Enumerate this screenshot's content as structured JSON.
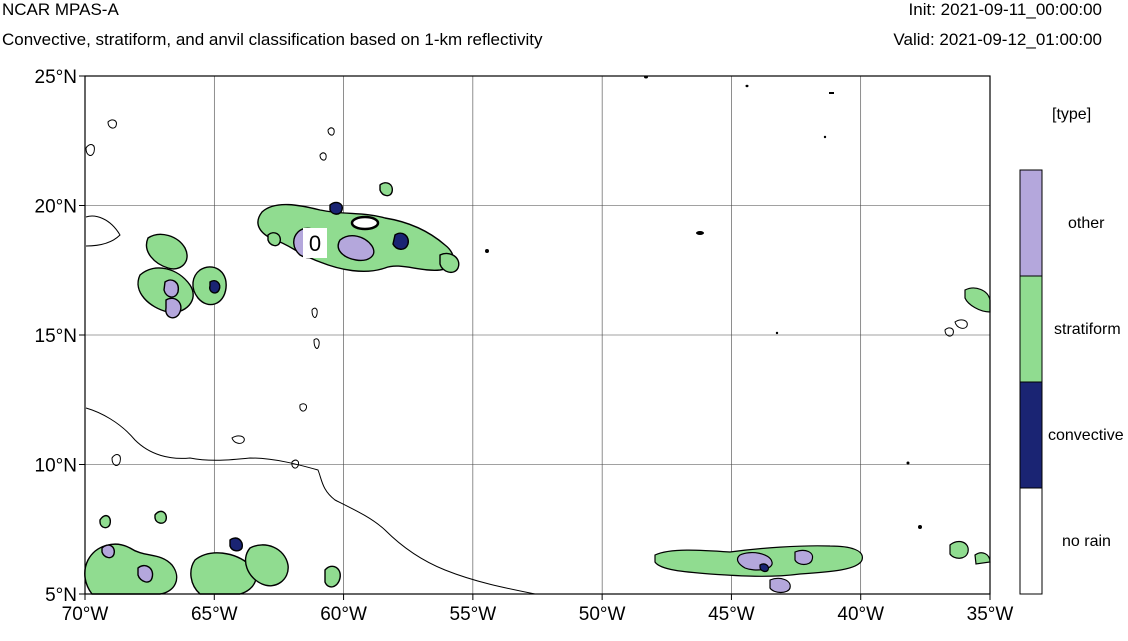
{
  "header": {
    "title": "NCAR MPAS-A",
    "subtitle": "Convective, stratiform, and anvil classification based on 1-km reflectivity",
    "init": "Init: 2021-09-11_00:00:00",
    "valid": "Valid: 2021-09-12_01:00:00"
  },
  "map": {
    "lon_range": [
      -70,
      -35
    ],
    "lat_range": [
      5,
      25
    ],
    "x_ticks": [
      {
        "value": -70,
        "label": "70°W"
      },
      {
        "value": -65,
        "label": "65°W"
      },
      {
        "value": -60,
        "label": "60°W"
      },
      {
        "value": -55,
        "label": "55°W"
      },
      {
        "value": -50,
        "label": "50°W"
      },
      {
        "value": -45,
        "label": "45°W"
      },
      {
        "value": -40,
        "label": "40°W"
      },
      {
        "value": -35,
        "label": "35°W"
      }
    ],
    "y_ticks": [
      {
        "value": 25,
        "label": "25°N"
      },
      {
        "value": 20,
        "label": "20°N"
      },
      {
        "value": 15,
        "label": "15°N"
      },
      {
        "value": 10,
        "label": "10°N"
      },
      {
        "value": 5,
        "label": "5°N"
      }
    ],
    "grid": true,
    "annotation": "0"
  },
  "legend": {
    "title": "[type]",
    "categories": [
      {
        "label": "other",
        "color": "#b4a7dc"
      },
      {
        "label": "stratiform",
        "color": "#90dc90"
      },
      {
        "label": "convective",
        "color": "#1a2473"
      },
      {
        "label": "no rain",
        "color": "#ffffff"
      }
    ]
  },
  "colors": {
    "other": "#b4a7dc",
    "stratiform": "#90dc90",
    "convective": "#1a2473",
    "no_rain": "#ffffff"
  }
}
